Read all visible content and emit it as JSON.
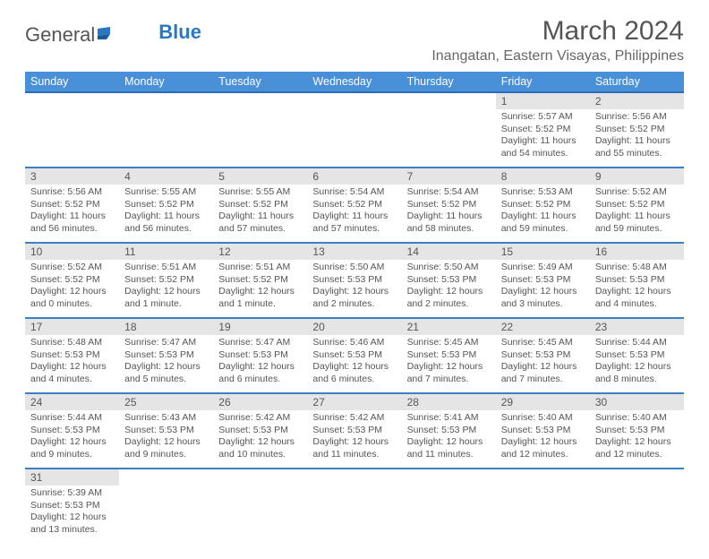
{
  "brand": {
    "part1": "General",
    "part2": "Blue"
  },
  "title": "March 2024",
  "location": "Inangatan, Eastern Visayas, Philippines",
  "colors": {
    "header_bg": "#4a90d9",
    "header_border": "#2b6db8",
    "row_border": "#3b7fc4",
    "daynum_bg": "#e5e5e5",
    "text": "#555"
  },
  "weekdays": [
    "Sunday",
    "Monday",
    "Tuesday",
    "Wednesday",
    "Thursday",
    "Friday",
    "Saturday"
  ],
  "weeks": [
    [
      null,
      null,
      null,
      null,
      null,
      {
        "n": "1",
        "sr": "5:57 AM",
        "ss": "5:52 PM",
        "dl": "11 hours and 54 minutes."
      },
      {
        "n": "2",
        "sr": "5:56 AM",
        "ss": "5:52 PM",
        "dl": "11 hours and 55 minutes."
      }
    ],
    [
      {
        "n": "3",
        "sr": "5:56 AM",
        "ss": "5:52 PM",
        "dl": "11 hours and 56 minutes."
      },
      {
        "n": "4",
        "sr": "5:55 AM",
        "ss": "5:52 PM",
        "dl": "11 hours and 56 minutes."
      },
      {
        "n": "5",
        "sr": "5:55 AM",
        "ss": "5:52 PM",
        "dl": "11 hours and 57 minutes."
      },
      {
        "n": "6",
        "sr": "5:54 AM",
        "ss": "5:52 PM",
        "dl": "11 hours and 57 minutes."
      },
      {
        "n": "7",
        "sr": "5:54 AM",
        "ss": "5:52 PM",
        "dl": "11 hours and 58 minutes."
      },
      {
        "n": "8",
        "sr": "5:53 AM",
        "ss": "5:52 PM",
        "dl": "11 hours and 59 minutes."
      },
      {
        "n": "9",
        "sr": "5:52 AM",
        "ss": "5:52 PM",
        "dl": "11 hours and 59 minutes."
      }
    ],
    [
      {
        "n": "10",
        "sr": "5:52 AM",
        "ss": "5:52 PM",
        "dl": "12 hours and 0 minutes."
      },
      {
        "n": "11",
        "sr": "5:51 AM",
        "ss": "5:52 PM",
        "dl": "12 hours and 1 minute."
      },
      {
        "n": "12",
        "sr": "5:51 AM",
        "ss": "5:52 PM",
        "dl": "12 hours and 1 minute."
      },
      {
        "n": "13",
        "sr": "5:50 AM",
        "ss": "5:53 PM",
        "dl": "12 hours and 2 minutes."
      },
      {
        "n": "14",
        "sr": "5:50 AM",
        "ss": "5:53 PM",
        "dl": "12 hours and 2 minutes."
      },
      {
        "n": "15",
        "sr": "5:49 AM",
        "ss": "5:53 PM",
        "dl": "12 hours and 3 minutes."
      },
      {
        "n": "16",
        "sr": "5:48 AM",
        "ss": "5:53 PM",
        "dl": "12 hours and 4 minutes."
      }
    ],
    [
      {
        "n": "17",
        "sr": "5:48 AM",
        "ss": "5:53 PM",
        "dl": "12 hours and 4 minutes."
      },
      {
        "n": "18",
        "sr": "5:47 AM",
        "ss": "5:53 PM",
        "dl": "12 hours and 5 minutes."
      },
      {
        "n": "19",
        "sr": "5:47 AM",
        "ss": "5:53 PM",
        "dl": "12 hours and 6 minutes."
      },
      {
        "n": "20",
        "sr": "5:46 AM",
        "ss": "5:53 PM",
        "dl": "12 hours and 6 minutes."
      },
      {
        "n": "21",
        "sr": "5:45 AM",
        "ss": "5:53 PM",
        "dl": "12 hours and 7 minutes."
      },
      {
        "n": "22",
        "sr": "5:45 AM",
        "ss": "5:53 PM",
        "dl": "12 hours and 7 minutes."
      },
      {
        "n": "23",
        "sr": "5:44 AM",
        "ss": "5:53 PM",
        "dl": "12 hours and 8 minutes."
      }
    ],
    [
      {
        "n": "24",
        "sr": "5:44 AM",
        "ss": "5:53 PM",
        "dl": "12 hours and 9 minutes."
      },
      {
        "n": "25",
        "sr": "5:43 AM",
        "ss": "5:53 PM",
        "dl": "12 hours and 9 minutes."
      },
      {
        "n": "26",
        "sr": "5:42 AM",
        "ss": "5:53 PM",
        "dl": "12 hours and 10 minutes."
      },
      {
        "n": "27",
        "sr": "5:42 AM",
        "ss": "5:53 PM",
        "dl": "12 hours and 11 minutes."
      },
      {
        "n": "28",
        "sr": "5:41 AM",
        "ss": "5:53 PM",
        "dl": "12 hours and 11 minutes."
      },
      {
        "n": "29",
        "sr": "5:40 AM",
        "ss": "5:53 PM",
        "dl": "12 hours and 12 minutes."
      },
      {
        "n": "30",
        "sr": "5:40 AM",
        "ss": "5:53 PM",
        "dl": "12 hours and 12 minutes."
      }
    ],
    [
      {
        "n": "31",
        "sr": "5:39 AM",
        "ss": "5:53 PM",
        "dl": "12 hours and 13 minutes."
      },
      null,
      null,
      null,
      null,
      null,
      null
    ]
  ],
  "labels": {
    "sunrise": "Sunrise:",
    "sunset": "Sunset:",
    "daylight": "Daylight:"
  }
}
